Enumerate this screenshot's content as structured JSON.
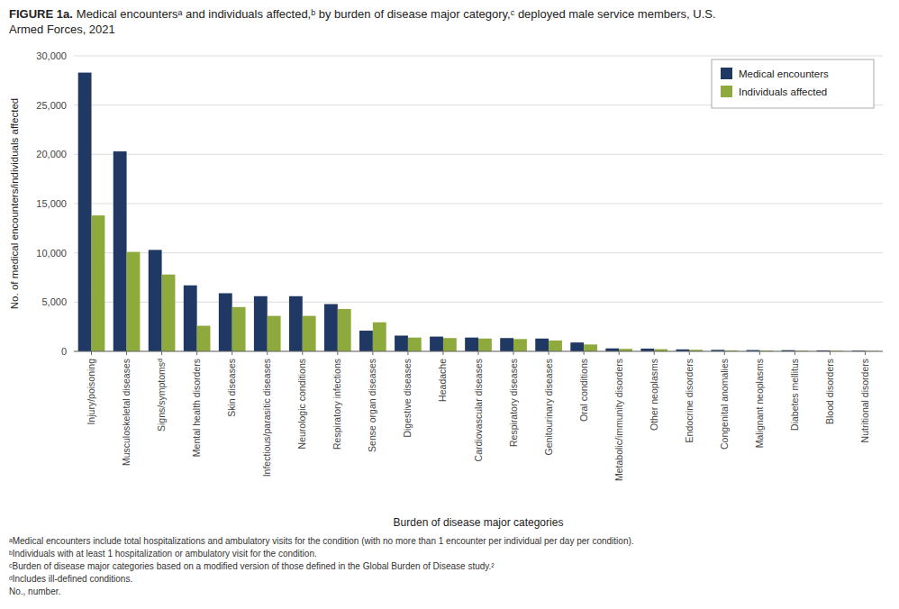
{
  "chart_data": {
    "type": "bar",
    "title": "FIGURE 1a.",
    "subtitle": "Medical encountersᵃ and individuals affected,ᵇ by burden of disease major category,ᶜ deployed male service members, U.S.\nArmed Forces, 2021",
    "x_label": "Burden of disease major categories",
    "y_label": "No. of medical encounters/individuals affected",
    "categories": [
      "Injury/poisoning",
      "Musculoskeletal diseases",
      "Signs/symptomsᵈ",
      "Mental health disorders",
      "Skin diseases",
      "Infectious/parasitic diseases",
      "Neurologic conditions",
      "Respiratory infections",
      "Sense organ diseases",
      "Digestive diseases",
      "Headache",
      "Cardiovascular diseases",
      "Respiratory diseases",
      "Genitourinary diseases",
      "Oral conditions",
      "Metabolic/immunity disorders",
      "Other neoplasms",
      "Endocrine disorders",
      "Congenital anomalies",
      "Malignant neoplasms",
      "Diabetes mellitus",
      "Blood disorders",
      "Nutritional disorders"
    ],
    "series": [
      {
        "name": "Medical encounters",
        "color": "#1f3864",
        "values": [
          28300,
          20300,
          10300,
          6700,
          5900,
          5600,
          5600,
          4800,
          2100,
          1600,
          1500,
          1400,
          1350,
          1300,
          900,
          300,
          280,
          200,
          150,
          130,
          120,
          100,
          70
        ]
      },
      {
        "name": "Individuals affected",
        "color": "#8faa3c",
        "values": [
          13800,
          10100,
          7800,
          2600,
          4500,
          3600,
          3600,
          4300,
          2950,
          1400,
          1350,
          1300,
          1250,
          1100,
          700,
          250,
          220,
          160,
          90,
          80,
          70,
          60,
          40
        ]
      }
    ],
    "ylim": [
      0,
      30000
    ],
    "yticks": [
      0,
      {
        "value": 5000,
        "label": "5,000"
      },
      {
        "value": 10000,
        "label": "10,000"
      },
      {
        "value": 15000,
        "label": "15,000"
      },
      {
        "value": 20000,
        "label": "20,000"
      },
      {
        "value": 25000,
        "label": "25,000"
      },
      {
        "value": 30000,
        "label": "30,000"
      }
    ],
    "grid": true,
    "legend": "upper right",
    "annotations": [
      "ᵃMedical encounters include total hospitalizations and ambulatory visits for the condition (with no more than 1 encounter per individual per day per condition).",
      "ᵇIndividuals with at least 1 hospitalization or ambulatory visit for the condition.",
      "ᶜBurden of disease major categories based on a modified version of those defined in the Global Burden of Disease study.²",
      "ᵈIncludes ill-defined conditions.",
      "No., number."
    ]
  }
}
